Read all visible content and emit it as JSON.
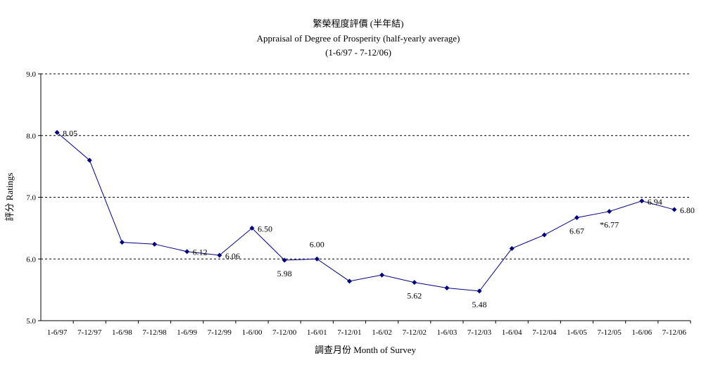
{
  "chart_data": {
    "type": "line",
    "title": "繁榮程度評價 (半年結)",
    "subtitle": "Appraisal of Degree of Prosperity (half-yearly average)",
    "period": "(1-6/97 - 7-12/06)",
    "xlabel": "調查月份 Month of Survey",
    "ylabel": "評分 Ratings",
    "ylim": [
      5.0,
      9.0
    ],
    "yticks": [
      "5.0",
      "6.0",
      "7.0",
      "8.0",
      "9.0"
    ],
    "grid": true,
    "categories": [
      "1-6/97",
      "7-12/97",
      "1-6/98",
      "7-12/98",
      "1-6/99",
      "7-12/99",
      "1-6/00",
      "7-12/00",
      "1-6/01",
      "7-12/01",
      "1-6/02",
      "7-12/02",
      "1-6/03",
      "7-12/03",
      "1-6/04",
      "7-12/04",
      "1-6/05",
      "7-12/05",
      "1-6/06",
      "7-12/06"
    ],
    "series": [
      {
        "color": "#000080",
        "values": [
          8.05,
          7.6,
          6.27,
          6.24,
          6.12,
          6.06,
          6.5,
          5.98,
          6.0,
          5.64,
          5.74,
          5.62,
          5.53,
          5.48,
          6.17,
          6.39,
          6.67,
          6.77,
          6.94,
          6.8
        ]
      }
    ],
    "data_labels": [
      {
        "index": 0,
        "text": "8.05",
        "pos": "right"
      },
      {
        "index": 4,
        "text": "6.12",
        "pos": "right"
      },
      {
        "index": 5,
        "text": "6.06",
        "pos": "right"
      },
      {
        "index": 6,
        "text": "6.50",
        "pos": "right"
      },
      {
        "index": 7,
        "text": "5.98",
        "pos": "below"
      },
      {
        "index": 8,
        "text": "6.00",
        "pos": "above"
      },
      {
        "index": 11,
        "text": "5.62",
        "pos": "below"
      },
      {
        "index": 13,
        "text": "5.48",
        "pos": "below"
      },
      {
        "index": 16,
        "text": "6.67",
        "pos": "below"
      },
      {
        "index": 17,
        "text": "*6.77",
        "pos": "below"
      },
      {
        "index": 18,
        "text": "6.94",
        "pos": "right"
      },
      {
        "index": 19,
        "text": "6.80",
        "pos": "right"
      }
    ]
  }
}
